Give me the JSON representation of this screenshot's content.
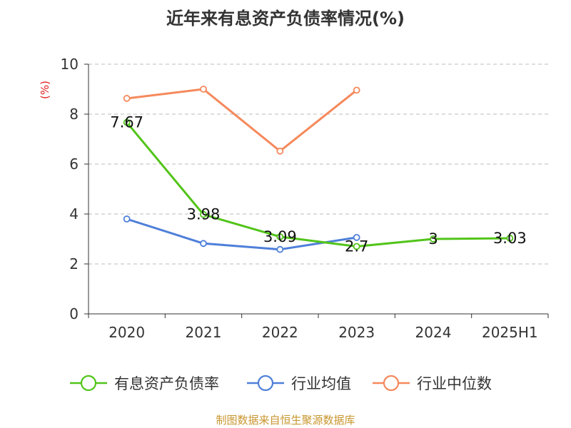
{
  "chart_data": {
    "type": "line",
    "title": "近年来有息资产负债率情况(%)",
    "ylabel": "(%)",
    "ylim": [
      0,
      10
    ],
    "yticks": [
      0,
      2,
      4,
      6,
      8,
      10
    ],
    "categories": [
      "2020",
      "2021",
      "2022",
      "2023",
      "2024",
      "2025H1"
    ],
    "grid": true,
    "legend_position": "bottom",
    "series": [
      {
        "name": "有息资产负债率",
        "color": "#52c41a",
        "values": [
          7.67,
          3.98,
          3.09,
          2.7,
          3,
          3.03
        ],
        "labels": [
          "7.67",
          "3.98",
          "3.09",
          "2.7",
          "3",
          "3.03"
        ]
      },
      {
        "name": "行业均值",
        "color": "#4e7fd9",
        "values": [
          3.8,
          2.82,
          2.58,
          3.06,
          null,
          null
        ]
      },
      {
        "name": "行业中位数",
        "color": "#f5895c",
        "values": [
          8.63,
          9.0,
          6.52,
          8.96,
          null,
          null
        ]
      }
    ]
  },
  "source": "制图数据来自恒生聚源数据库"
}
